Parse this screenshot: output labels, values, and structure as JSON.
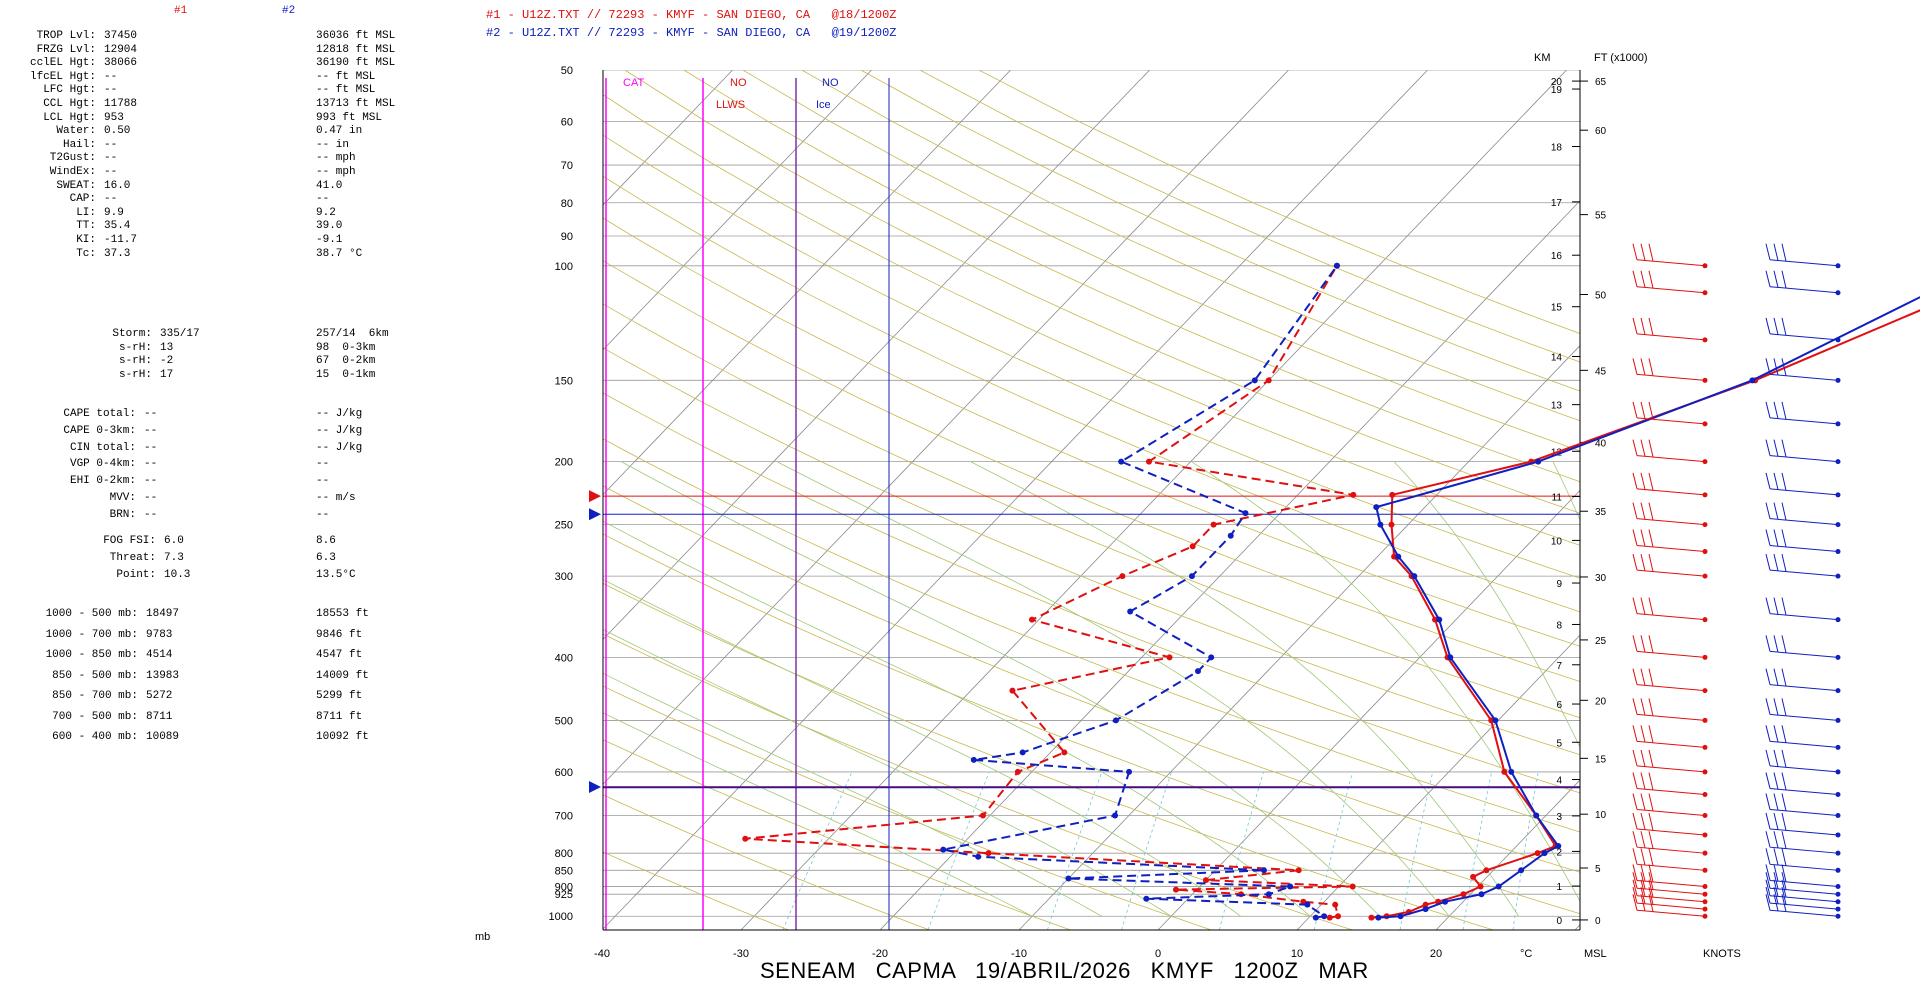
{
  "legend": {
    "col1": "#1",
    "col2": "#2"
  },
  "header": {
    "line1": "#1 - U12Z.TXT // 72293 - KMYF - SAN DIEGO, CA   @18/1200Z",
    "line2": "#2 - U12Z.TXT // 72293 - KMYF - SAN DIEGO, CA   @19/1200Z"
  },
  "stats": [
    {
      "label": "TROP Lvl:",
      "v1": "37450",
      "v2": "36036 ft MSL"
    },
    {
      "label": "FRZG Lvl:",
      "v1": "12904",
      "v2": "12818 ft MSL"
    },
    {
      "label": "cclEL Hgt:",
      "v1": "38066",
      "v2": "36190 ft MSL"
    },
    {
      "label": "lfcEL Hgt:",
      "v1": "--",
      "v2": "-- ft MSL"
    },
    {
      "label": "LFC Hgt:",
      "v1": "--",
      "v2": "-- ft MSL"
    },
    {
      "label": "CCL Hgt:",
      "v1": "11788",
      "v2": "13713 ft MSL"
    },
    {
      "label": "LCL Hgt:",
      "v1": "953",
      "v2": "993 ft MSL"
    },
    {
      "label": "Water:",
      "v1": "0.50",
      "v2": "0.47 in"
    },
    {
      "label": "Hail:",
      "v1": "--",
      "v2": "-- in"
    },
    {
      "label": "T2Gust:",
      "v1": "--",
      "v2": "-- mph"
    },
    {
      "label": "WindEx:",
      "v1": "--",
      "v2": "-- mph"
    },
    {
      "label": "SWEAT:",
      "v1": "16.0",
      "v2": "41.0"
    },
    {
      "label": "CAP:",
      "v1": "--",
      "v2": "--"
    },
    {
      "label": "LI:",
      "v1": "9.9",
      "v2": "9.2"
    },
    {
      "label": "TT:",
      "v1": "35.4",
      "v2": "39.0"
    },
    {
      "label": "KI:",
      "v1": "-11.7",
      "v2": "-9.1"
    },
    {
      "label": "Tc:",
      "v1": "37.3",
      "v2": "38.7 °C"
    }
  ],
  "storm": [
    {
      "label": "Storm:",
      "v1": "335/17",
      "v2": "257/14  6km"
    },
    {
      "label": "s-rH:",
      "v1": "13",
      "v2": "98  0-3km"
    },
    {
      "label": "s-rH:",
      "v1": "-2",
      "v2": "67  0-2km"
    },
    {
      "label": "s-rH:",
      "v1": "17",
      "v2": "15  0-1km"
    }
  ],
  "cape": [
    {
      "label": "CAPE total:",
      "v1": "--",
      "v2": "-- J/kg"
    },
    {
      "label": "CAPE 0-3km:",
      "v1": "--",
      "v2": "-- J/kg"
    },
    {
      "label": "CIN total:",
      "v1": "--",
      "v2": "-- J/kg"
    },
    {
      "label": "VGP 0-4km:",
      "v1": "--",
      "v2": "--"
    },
    {
      "label": "EHI 0-2km:",
      "v1": "--",
      "v2": "--"
    },
    {
      "label": "MVV:",
      "v1": "--",
      "v2": "-- m/s"
    },
    {
      "label": "BRN:",
      "v1": "--",
      "v2": "--"
    }
  ],
  "fog": [
    {
      "label": "FOG FSI:",
      "v1": "6.0",
      "v2": "8.6"
    },
    {
      "label": "Threat:",
      "v1": "7.3",
      "v2": "6.3"
    },
    {
      "label": "Point:",
      "v1": "10.3",
      "v2": "13.5°C"
    }
  ],
  "thickness": [
    {
      "label": "1000 - 500 mb:",
      "v1": "18497",
      "v2": "18553 ft"
    },
    {
      "label": "1000 - 700 mb:",
      "v1": "9783",
      "v2": "9846 ft"
    },
    {
      "label": "1000 - 850 mb:",
      "v1": "4514",
      "v2": "4547 ft"
    },
    {
      "label": "850 - 500 mb:",
      "v1": "13983",
      "v2": "14009 ft"
    },
    {
      "label": "850 - 700 mb:",
      "v1": "5272",
      "v2": "5299 ft"
    },
    {
      "label": "700 - 500 mb:",
      "v1": "8711",
      "v2": "8711 ft"
    },
    {
      "label": "600 - 400 mb:",
      "v1": "10089",
      "v2": "10092 ft"
    }
  ],
  "panel_labels": {
    "cat": "CAT",
    "no1": "NO",
    "llws": "LLWS",
    "no2": "NO",
    "ice": "Ice",
    "mb": "mb",
    "km": "KM",
    "ft": "FT (x1000)",
    "msl": "MSL",
    "degc": "°C",
    "knots": "KNOTS"
  },
  "footer": "SENEAM   CAPMA   19/ABRIL/2026   KMYF   1200Z   MAR",
  "colors": {
    "sounding1": "#e01010",
    "sounding2": "#1020c0",
    "turb": "#ff00ff"
  },
  "chart_data": {
    "type": "line",
    "chart_kind": "skew-T log-P sounding",
    "x_axis": {
      "unit": "°C",
      "ticks": [
        -40,
        -30,
        -20,
        -10,
        0,
        10,
        20
      ],
      "range": [
        -40,
        30
      ]
    },
    "y_axis": {
      "unit": "mb",
      "scale": "log",
      "ticks": [
        50,
        60,
        70,
        80,
        90,
        100,
        150,
        200,
        250,
        300,
        400,
        500,
        600,
        700,
        800,
        850,
        900,
        925,
        1000
      ]
    },
    "km_ticks": [
      0,
      1,
      2,
      3,
      4,
      5,
      6,
      7,
      8,
      9,
      10,
      11,
      12,
      13,
      14,
      15,
      16,
      17,
      18,
      19,
      20
    ],
    "kft_ticks": [
      0,
      5,
      10,
      15,
      20,
      25,
      30,
      35,
      40,
      45,
      50,
      55,
      60,
      65
    ],
    "series": [
      {
        "name": "#1",
        "temperature": [
          [
            1005,
            14.5
          ],
          [
            1000,
            15.5
          ],
          [
            985,
            16.8
          ],
          [
            960,
            17.5
          ],
          [
            950,
            18.2
          ],
          [
            925,
            19.5
          ],
          [
            900,
            20.2
          ],
          [
            870,
            19.0
          ],
          [
            850,
            19.5
          ],
          [
            800,
            22.0
          ],
          [
            780,
            22.8
          ],
          [
            700,
            19.3
          ],
          [
            600,
            14.0
          ],
          [
            500,
            9.5
          ],
          [
            400,
            2.0
          ],
          [
            350,
            -1.5
          ],
          [
            300,
            -6.2
          ],
          [
            280,
            -8.8
          ],
          [
            250,
            -11.2
          ],
          [
            225,
            -13.2
          ],
          [
            200,
            -5.5
          ],
          [
            150,
            5.0
          ],
          [
            100,
            16.5
          ]
        ],
        "dewpoint": [
          [
            1005,
            11.5
          ],
          [
            1000,
            12.0
          ],
          [
            960,
            11.0
          ],
          [
            950,
            8.5
          ],
          [
            925,
            3.5
          ],
          [
            910,
            -1.5
          ],
          [
            900,
            11.0
          ],
          [
            880,
            0.0
          ],
          [
            850,
            6.0
          ],
          [
            800,
            -17.5
          ],
          [
            760,
            -36.0
          ],
          [
            700,
            -20.5
          ],
          [
            600,
            -21.0
          ],
          [
            560,
            -19.0
          ],
          [
            450,
            -27.0
          ],
          [
            400,
            -18.0
          ],
          [
            350,
            -30.5
          ],
          [
            300,
            -27.0
          ],
          [
            270,
            -24.0
          ],
          [
            250,
            -24.0
          ],
          [
            225,
            -16.0
          ],
          [
            200,
            -33.0
          ],
          [
            150,
            -30.0
          ],
          [
            100,
            -33.0
          ]
        ]
      },
      {
        "name": "#2",
        "temperature": [
          [
            1005,
            15.0
          ],
          [
            1000,
            16.5
          ],
          [
            975,
            17.8
          ],
          [
            950,
            18.7
          ],
          [
            925,
            20.8
          ],
          [
            900,
            21.5
          ],
          [
            850,
            22.0
          ],
          [
            800,
            22.5
          ],
          [
            780,
            23.0
          ],
          [
            700,
            19.3
          ],
          [
            600,
            14.5
          ],
          [
            500,
            9.8
          ],
          [
            400,
            2.2
          ],
          [
            350,
            -1.2
          ],
          [
            300,
            -6.0
          ],
          [
            280,
            -8.5
          ],
          [
            250,
            -12.0
          ],
          [
            235,
            -13.5
          ],
          [
            200,
            -5.0
          ],
          [
            150,
            4.8
          ],
          [
            100,
            13.5
          ]
        ],
        "dewpoint": [
          [
            1005,
            10.5
          ],
          [
            1000,
            11.0
          ],
          [
            960,
            9.0
          ],
          [
            940,
            -3.0
          ],
          [
            925,
            5.5
          ],
          [
            900,
            6.5
          ],
          [
            875,
            -10.0
          ],
          [
            850,
            3.5
          ],
          [
            810,
            -18.0
          ],
          [
            790,
            -21.0
          ],
          [
            700,
            -11.0
          ],
          [
            600,
            -13.0
          ],
          [
            575,
            -25.0
          ],
          [
            560,
            -22.0
          ],
          [
            500,
            -17.5
          ],
          [
            420,
            -15.0
          ],
          [
            400,
            -15.0
          ],
          [
            340,
            -24.0
          ],
          [
            300,
            -22.0
          ],
          [
            260,
            -22.0
          ],
          [
            240,
            -22.5
          ],
          [
            200,
            -35.0
          ],
          [
            150,
            -31.0
          ],
          [
            100,
            -33.0
          ]
        ]
      }
    ]
  }
}
